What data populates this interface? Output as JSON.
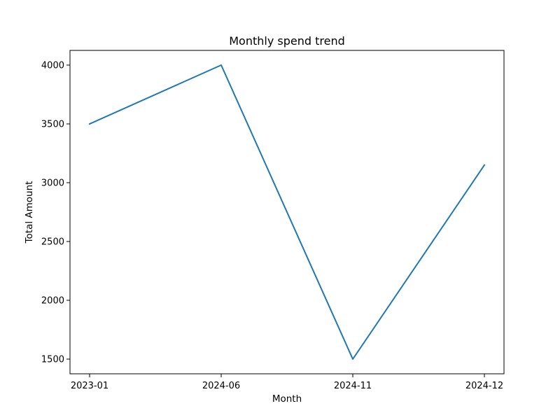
{
  "chart_data": {
    "type": "line",
    "title": "Monthly spend trend",
    "xlabel": "Month",
    "ylabel": "Total Amount",
    "categories": [
      "2023-01",
      "2024-06",
      "2024-11",
      "2024-12"
    ],
    "series": [
      {
        "values": [
          3500,
          4000,
          1500,
          3150
        ],
        "color": "#1f77b4"
      }
    ],
    "ylim": [
      1375,
      4125
    ],
    "yticks": [
      1500,
      2000,
      2500,
      3000,
      3500,
      4000
    ],
    "grid": false,
    "legend": "none"
  }
}
